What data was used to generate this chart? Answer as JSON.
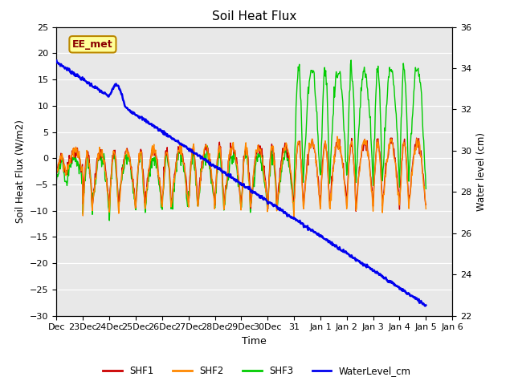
{
  "title": "Soil Heat Flux",
  "ylabel_left": "Soil Heat Flux (W/m2)",
  "ylabel_right": "Water level (cm)",
  "xlabel": "Time",
  "ylim_left": [
    -30,
    25
  ],
  "ylim_right": [
    22,
    36
  ],
  "xtick_labels": [
    "Dec",
    "23Dec",
    "24Dec",
    "25Dec",
    "26Dec",
    "27Dec",
    "28Dec",
    "29Dec",
    "30Dec",
    "31",
    "Jan 1",
    "Jan 2",
    "Jan 3",
    "Jan 4",
    "Jan 5",
    "Jan 6"
  ],
  "colors": {
    "SHF1": "#cc0000",
    "SHF2": "#ff8800",
    "SHF3": "#00cc00",
    "WaterLevel": "#0000ee"
  },
  "annotation_text": "EE_met",
  "annotation_color": "#8b0000",
  "annotation_bg": "#ffff99",
  "annotation_border": "#bb8800",
  "background_color": "#e8e8e8",
  "grid_color": "#ffffff"
}
